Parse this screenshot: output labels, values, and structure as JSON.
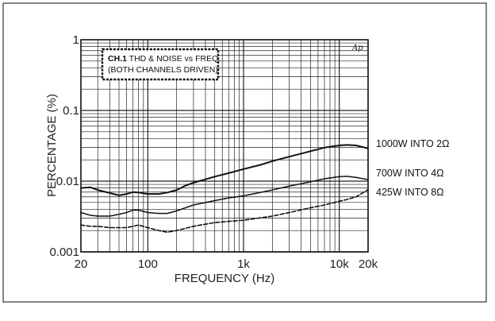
{
  "chart_data": {
    "type": "line",
    "title_line1_prefix": "CH.1",
    "title_line1_rest": " THD & NOISE vs FREQ.",
    "title_line2": "(BOTH CHANNELS DRIVEN)",
    "xlabel": "FREQUENCY (Hz)",
    "ylabel": "PERCENTAGE (%)",
    "xscale": "log",
    "yscale": "log",
    "xlim": [
      20,
      20000
    ],
    "ylim": [
      0.001,
      1
    ],
    "x_tick_labels": [
      "20",
      "100",
      "1k",
      "10k",
      "20k"
    ],
    "y_tick_labels": [
      "1",
      "0.1",
      "0.01",
      "0.001"
    ],
    "grid": true,
    "logo_text": "Ap",
    "series": [
      {
        "name": "1000W INTO 2Ω",
        "style": "solid",
        "x": [
          20,
          25,
          30,
          40,
          50,
          60,
          70,
          80,
          100,
          130,
          160,
          200,
          250,
          300,
          400,
          500,
          700,
          1000,
          1500,
          2000,
          3000,
          5000,
          7000,
          10000,
          12000,
          15000,
          20000
        ],
        "y": [
          0.008,
          0.0082,
          0.0075,
          0.0068,
          0.0063,
          0.0066,
          0.007,
          0.0069,
          0.0066,
          0.0066,
          0.0069,
          0.0075,
          0.0087,
          0.0095,
          0.0106,
          0.0116,
          0.013,
          0.0148,
          0.017,
          0.0192,
          0.0222,
          0.0265,
          0.0298,
          0.032,
          0.0325,
          0.032,
          0.029
        ]
      },
      {
        "name": "700W INTO 4Ω",
        "style": "dotted",
        "x": [
          20,
          25,
          30,
          40,
          50,
          60,
          70,
          80,
          100,
          130,
          160,
          200,
          300,
          500,
          700,
          1000,
          2000,
          3000,
          5000,
          7000,
          10000,
          12000,
          15000,
          20000
        ],
        "y": [
          0.0036,
          0.0033,
          0.0032,
          0.0032,
          0.0034,
          0.0036,
          0.0039,
          0.0039,
          0.0036,
          0.0035,
          0.0035,
          0.0038,
          0.0046,
          0.0053,
          0.0058,
          0.0062,
          0.0075,
          0.0085,
          0.0098,
          0.0108,
          0.0116,
          0.0117,
          0.0113,
          0.0105
        ]
      },
      {
        "name": "425W INTO 8Ω",
        "style": "dashed",
        "x": [
          20,
          25,
          30,
          40,
          50,
          60,
          70,
          80,
          100,
          130,
          160,
          200,
          300,
          500,
          700,
          1000,
          2000,
          3000,
          5000,
          7000,
          10000,
          12000,
          15000,
          20000
        ],
        "y": [
          0.0024,
          0.0023,
          0.0023,
          0.0022,
          0.0022,
          0.0022,
          0.0023,
          0.0024,
          0.0022,
          0.002,
          0.0019,
          0.002,
          0.0023,
          0.0026,
          0.0027,
          0.0028,
          0.0032,
          0.0036,
          0.0042,
          0.0046,
          0.0052,
          0.0055,
          0.006,
          0.0076
        ]
      }
    ]
  }
}
